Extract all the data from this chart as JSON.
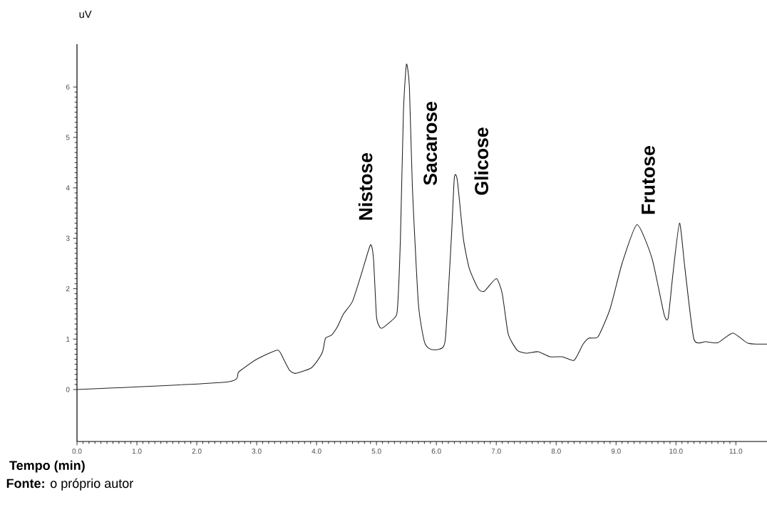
{
  "chart_data": {
    "type": "line",
    "ylabel": "uV",
    "xlabel": "Tempo (min)",
    "annotations": [
      "Nistose",
      "Sacarose",
      "Glicose",
      "Frutose",
      "**Fonte:** o próprio autor"
    ],
    "xlim": [
      0,
      11.52
    ],
    "ylim": [
      -1.03,
      6.85
    ],
    "xticks": [
      {
        "value": 0,
        "label": "0.0"
      },
      {
        "value": 1,
        "label": "1.0"
      },
      {
        "value": 2,
        "label": "2.0"
      },
      {
        "value": 3,
        "label": "3.0"
      },
      {
        "value": 4,
        "label": "4.0"
      },
      {
        "value": 5,
        "label": "5.0"
      },
      {
        "value": 6,
        "label": "6.0"
      },
      {
        "value": 7,
        "label": "7.0"
      },
      {
        "value": 8,
        "label": "8.0"
      },
      {
        "value": 9,
        "label": "9.0"
      },
      {
        "value": 10,
        "label": "10.0"
      },
      {
        "value": 11,
        "label": "11.0"
      }
    ],
    "yticks": [
      0,
      1,
      2,
      3,
      4,
      5,
      6
    ],
    "series": [
      {
        "color": "#222222",
        "x": [
          0.0,
          2.5,
          2.7,
          3.0,
          3.35,
          3.45,
          3.55,
          3.65,
          3.9,
          4.0,
          4.1,
          4.15,
          4.25,
          4.35,
          4.45,
          4.6,
          4.75,
          4.9,
          4.95,
          5.0,
          5.05,
          5.1,
          5.3,
          5.35,
          5.4,
          5.45,
          5.5,
          5.55,
          5.6,
          5.7,
          5.8,
          5.9,
          6.05,
          6.15,
          6.25,
          6.3,
          6.35,
          6.45,
          6.55,
          6.7,
          6.8,
          7.0,
          7.1,
          7.2,
          7.35,
          7.5,
          7.7,
          7.9,
          8.1,
          8.3,
          8.45,
          8.55,
          8.7,
          8.9,
          9.1,
          9.35,
          9.6,
          9.8,
          9.87,
          9.95,
          10.06,
          10.15,
          10.3,
          10.5,
          10.7,
          10.95,
          11.2,
          11.52
        ],
        "values": [
          0.0,
          0.15,
          0.35,
          0.6,
          0.78,
          0.6,
          0.38,
          0.32,
          0.42,
          0.55,
          0.75,
          1.02,
          1.08,
          1.25,
          1.5,
          1.75,
          2.3,
          2.87,
          2.6,
          1.45,
          1.25,
          1.22,
          1.42,
          1.6,
          3.0,
          5.5,
          6.45,
          6.0,
          4.0,
          1.7,
          0.95,
          0.8,
          0.8,
          1.0,
          3.0,
          4.2,
          4.15,
          3.0,
          2.4,
          2.0,
          1.95,
          2.2,
          1.9,
          1.1,
          0.78,
          0.72,
          0.75,
          0.65,
          0.65,
          0.58,
          0.9,
          1.02,
          1.05,
          1.6,
          2.5,
          3.27,
          2.6,
          1.5,
          1.42,
          2.3,
          3.3,
          2.4,
          1.0,
          0.95,
          0.93,
          1.12,
          0.92,
          0.9
        ]
      }
    ]
  }
}
